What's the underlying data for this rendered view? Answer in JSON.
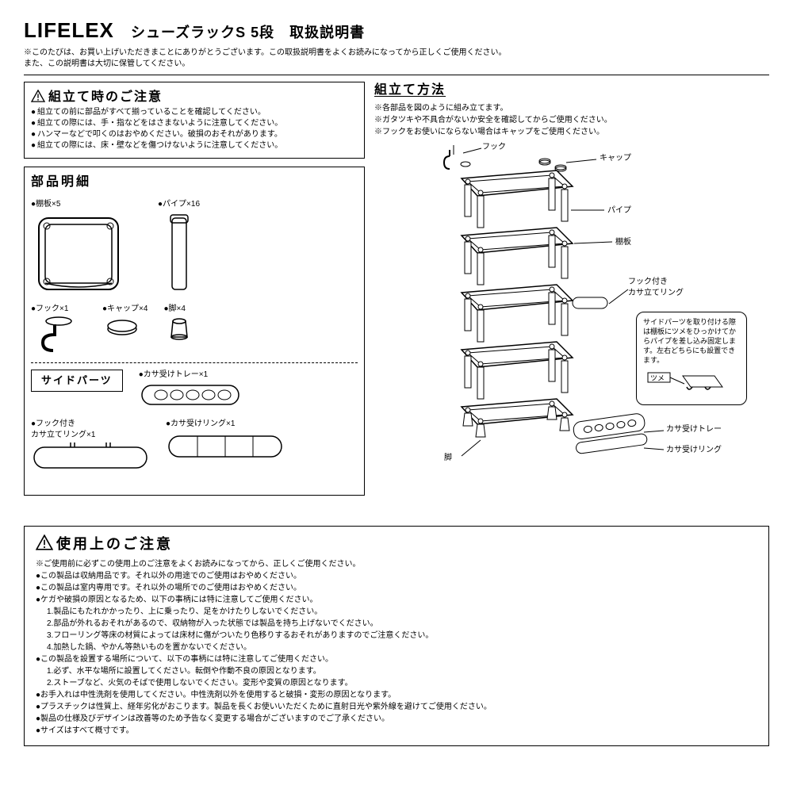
{
  "header": {
    "brand": "LIFELEX",
    "product": "シューズラックS 5段　取扱説明書",
    "intro1": "※このたびは、お買い上げいただきまことにありがとうございます。この取扱説明書をよくお読みになってから正しくご使用ください。",
    "intro2": "また、この説明書は大切に保管してください。"
  },
  "assembly_caution": {
    "title": "組立て時のご注意",
    "items": [
      "組立ての前に部品がすべて揃っていることを確認してください。",
      "組立ての際には、手・指などをはさまないように注意してください。",
      "ハンマーなどで叩くのはおやめください。破損のおそれがあります。",
      "組立ての際には、床・壁などを傷つけないように注意してください。"
    ]
  },
  "parts": {
    "title": "部品明細",
    "shelf": "棚板×5",
    "pipe": "パイプ×16",
    "hook": "フック×1",
    "cap": "キャップ×4",
    "leg": "脚×4",
    "side_label": "サイドパーツ",
    "tray": "カサ受けトレー×1",
    "ring_hook": "フック付き\nカサ立てリング×1",
    "ring": "カサ受けリング×1"
  },
  "assembly": {
    "title": "組立て方法",
    "note1": "※各部品を図のように組み立てます。",
    "note2": "※ガタツキや不具合がないか安全を確認してからご使用ください。",
    "note3": "※フックをお使いにならない場合はキャップをご使用ください。",
    "label_hook": "フック",
    "label_cap": "キャップ",
    "label_pipe": "パイプ",
    "label_shelf": "棚板",
    "label_hookring": "フック付き\nカサ立てリング",
    "label_leg": "脚",
    "label_tray": "カサ受けトレー",
    "label_ring": "カサ受けリング",
    "sidebox": "サイドパーツを取り付ける際は棚板にツメをひっかけてからパイプを差し込み固定します。左右どちらにも設置できます。",
    "sidebox_tsume": "ツメ"
  },
  "usage": {
    "title": "使用上のご注意",
    "lead": "※ご使用前に必ずこの使用上のご注意をよくお読みになってから、正しくご使用ください。",
    "lines": [
      {
        "c": "b",
        "t": "この製品は収納用品です。それ以外の用途でのご使用はおやめください。"
      },
      {
        "c": "b",
        "t": "この製品は室内専用です。それ以外の場所でのご使用はおやめください。"
      },
      {
        "c": "b",
        "t": "ケガや破損の原因となるため、以下の事柄には特に注意してご使用ください。"
      },
      {
        "c": "n",
        "t": "1.製品にもたれかかったり、上に乗ったり、足をかけたりしないでください。"
      },
      {
        "c": "n",
        "t": "2.部品が外れるおそれがあるので、収納物が入った状態では製品を持ち上げないでください。"
      },
      {
        "c": "n",
        "t": "3.フローリング等床の材質によっては床材に傷がついたり色移りするおそれがありますのでご注意ください。"
      },
      {
        "c": "n",
        "t": "4.加熱した鍋、やかん等熱いものを置かないでください。"
      },
      {
        "c": "b",
        "t": "この製品を設置する場所について、以下の事柄には特に注意してご使用ください。"
      },
      {
        "c": "n",
        "t": "1.必ず、水平な場所に設置してください。転倒や作動不良の原因となります。"
      },
      {
        "c": "n",
        "t": "2.ストーブなど、火気のそばで使用しないでください。変形や変質の原因となります。"
      },
      {
        "c": "b",
        "t": "お手入れは中性洗剤を使用してください。中性洗剤以外を使用すると破損・変形の原因となります。"
      },
      {
        "c": "b",
        "t": "プラスチックは性質上、経年劣化がおこります。製品を長くお使いいただくために直射日光や紫外線を避けてご使用ください。"
      },
      {
        "c": "b",
        "t": "製品の仕様及びデザインは改善等のため予告なく変更する場合がございますのでご了承ください。"
      },
      {
        "c": "b",
        "t": "サイズはすべて概寸です。"
      }
    ]
  }
}
